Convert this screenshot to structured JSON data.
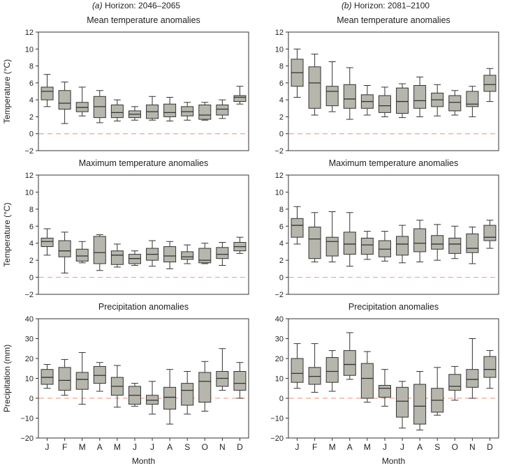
{
  "column_headers": [
    {
      "letter": "(a)",
      "text": "Horizon: 2046–2065"
    },
    {
      "letter": "(b)",
      "text": "Horizon: 2081–2100"
    }
  ],
  "x_axis_label": "Month",
  "colors": {
    "box_fill": "#b6b6ad",
    "box_stroke": "#333333",
    "zero_line": "#f4a38f",
    "frame": "#333333"
  },
  "chart_data": [
    {
      "type": "boxplot",
      "row": 0,
      "column": 0,
      "title": "Mean temperature anomalies",
      "ylabel": "Temperature (°C)",
      "ylim": [
        -2,
        12
      ],
      "yticks": [
        -2,
        0,
        2,
        4,
        6,
        8,
        10,
        12
      ],
      "reference_line": 0,
      "grid": false,
      "categories": [
        "J",
        "F",
        "M",
        "A",
        "M",
        "J",
        "J",
        "A",
        "S",
        "O",
        "N",
        "D"
      ],
      "boxes": [
        {
          "whislo": 3.2,
          "q1": 4.0,
          "med": 5.0,
          "q3": 5.5,
          "whishi": 7.0
        },
        {
          "whislo": 1.2,
          "q1": 2.9,
          "med": 3.6,
          "q3": 5.1,
          "whishi": 6.1
        },
        {
          "whislo": 2.1,
          "q1": 2.6,
          "med": 3.1,
          "q3": 3.7,
          "whishi": 5.5
        },
        {
          "whislo": 1.3,
          "q1": 1.9,
          "med": 3.2,
          "q3": 4.4,
          "whishi": 5.1
        },
        {
          "whislo": 1.5,
          "q1": 1.9,
          "med": 2.5,
          "q3": 3.4,
          "whishi": 4.0
        },
        {
          "whislo": 1.6,
          "q1": 1.9,
          "med": 2.3,
          "q3": 2.7,
          "whishi": 3.2
        },
        {
          "whislo": 1.6,
          "q1": 1.8,
          "med": 2.6,
          "q3": 3.4,
          "whishi": 4.4
        },
        {
          "whislo": 1.5,
          "q1": 2.0,
          "med": 2.5,
          "q3": 3.5,
          "whishi": 4.3
        },
        {
          "whislo": 1.6,
          "q1": 2.1,
          "med": 2.6,
          "q3": 3.2,
          "whishi": 3.7
        },
        {
          "whislo": 1.6,
          "q1": 1.7,
          "med": 2.2,
          "q3": 3.4,
          "whishi": 3.7
        },
        {
          "whislo": 1.8,
          "q1": 2.2,
          "med": 2.9,
          "q3": 3.4,
          "whishi": 4.0
        },
        {
          "whislo": 3.5,
          "q1": 3.8,
          "med": 4.3,
          "q3": 4.5,
          "whishi": 5.6
        }
      ]
    },
    {
      "type": "boxplot",
      "row": 0,
      "column": 1,
      "title": "Mean temperature anomalies",
      "ylabel": "",
      "ylim": [
        -2,
        12
      ],
      "yticks": [
        -2,
        0,
        2,
        4,
        6,
        8,
        10,
        12
      ],
      "reference_line": 0,
      "grid": false,
      "categories": [
        "J",
        "F",
        "M",
        "A",
        "M",
        "J",
        "J",
        "A",
        "S",
        "O",
        "N",
        "D"
      ],
      "boxes": [
        {
          "whislo": 4.3,
          "q1": 5.6,
          "med": 7.2,
          "q3": 8.8,
          "whishi": 10.0
        },
        {
          "whislo": 2.2,
          "q1": 3.0,
          "med": 6.0,
          "q3": 7.9,
          "whishi": 9.4
        },
        {
          "whislo": 2.6,
          "q1": 3.3,
          "med": 5.0,
          "q3": 5.6,
          "whishi": 8.5
        },
        {
          "whislo": 1.7,
          "q1": 3.0,
          "med": 4.1,
          "q3": 5.8,
          "whishi": 7.8
        },
        {
          "whislo": 2.2,
          "q1": 3.0,
          "med": 3.8,
          "q3": 4.6,
          "whishi": 5.7
        },
        {
          "whislo": 2.0,
          "q1": 2.5,
          "med": 3.3,
          "q3": 4.5,
          "whishi": 5.5
        },
        {
          "whislo": 1.9,
          "q1": 2.4,
          "med": 3.8,
          "q3": 5.4,
          "whishi": 5.9
        },
        {
          "whislo": 2.0,
          "q1": 3.0,
          "med": 3.9,
          "q3": 5.7,
          "whishi": 6.7
        },
        {
          "whislo": 2.1,
          "q1": 3.2,
          "med": 4.0,
          "q3": 4.8,
          "whishi": 5.8
        },
        {
          "whislo": 2.2,
          "q1": 2.7,
          "med": 3.7,
          "q3": 4.5,
          "whishi": 5.1
        },
        {
          "whislo": 2.0,
          "q1": 3.2,
          "med": 3.5,
          "q3": 5.0,
          "whishi": 5.6
        },
        {
          "whislo": 3.8,
          "q1": 5.0,
          "med": 5.8,
          "q3": 6.9,
          "whishi": 7.7
        }
      ]
    },
    {
      "type": "boxplot",
      "row": 1,
      "column": 0,
      "title": "Maximum temperature anomalies",
      "ylabel": "Temperature (°C)",
      "ylim": [
        -2,
        12
      ],
      "yticks": [
        -2,
        0,
        2,
        4,
        6,
        8,
        10,
        12
      ],
      "reference_line": 0,
      "grid": false,
      "categories": [
        "J",
        "F",
        "M",
        "A",
        "M",
        "J",
        "J",
        "A",
        "S",
        "O",
        "N",
        "D"
      ],
      "boxes": [
        {
          "whislo": 2.6,
          "q1": 3.6,
          "med": 4.2,
          "q3": 4.6,
          "whishi": 5.7
        },
        {
          "whislo": 0.5,
          "q1": 2.4,
          "med": 3.1,
          "q3": 4.3,
          "whishi": 5.3
        },
        {
          "whislo": 1.7,
          "q1": 1.9,
          "med": 2.5,
          "q3": 3.3,
          "whishi": 4.2
        },
        {
          "whislo": 0.8,
          "q1": 1.6,
          "med": 2.9,
          "q3": 4.8,
          "whishi": 5.0
        },
        {
          "whislo": 1.2,
          "q1": 1.5,
          "med": 2.6,
          "q3": 3.1,
          "whishi": 3.9
        },
        {
          "whislo": 1.4,
          "q1": 1.6,
          "med": 2.2,
          "q3": 2.7,
          "whishi": 3.1
        },
        {
          "whislo": 1.3,
          "q1": 2.0,
          "med": 2.7,
          "q3": 3.4,
          "whishi": 4.3
        },
        {
          "whislo": 1.0,
          "q1": 1.8,
          "med": 2.5,
          "q3": 3.6,
          "whishi": 4.2
        },
        {
          "whislo": 1.6,
          "q1": 2.1,
          "med": 2.4,
          "q3": 3.0,
          "whishi": 3.8
        },
        {
          "whislo": 1.6,
          "q1": 1.7,
          "med": 2.0,
          "q3": 3.4,
          "whishi": 4.0
        },
        {
          "whislo": 1.4,
          "q1": 2.2,
          "med": 2.7,
          "q3": 3.5,
          "whishi": 4.1
        },
        {
          "whislo": 2.8,
          "q1": 3.1,
          "med": 3.6,
          "q3": 4.1,
          "whishi": 4.7
        }
      ]
    },
    {
      "type": "boxplot",
      "row": 1,
      "column": 1,
      "title": "Maximum temperature anomalies",
      "ylabel": "",
      "ylim": [
        -2,
        12
      ],
      "yticks": [
        -2,
        0,
        2,
        4,
        6,
        8,
        10,
        12
      ],
      "reference_line": 0,
      "grid": false,
      "categories": [
        "J",
        "F",
        "M",
        "A",
        "M",
        "J",
        "J",
        "A",
        "S",
        "O",
        "N",
        "D"
      ],
      "boxes": [
        {
          "whislo": 3.9,
          "q1": 4.7,
          "med": 6.1,
          "q3": 6.9,
          "whishi": 8.3
        },
        {
          "whislo": 1.8,
          "q1": 2.2,
          "med": 4.5,
          "q3": 5.9,
          "whishi": 7.6
        },
        {
          "whislo": 1.8,
          "q1": 2.5,
          "med": 4.2,
          "q3": 4.7,
          "whishi": 7.7
        },
        {
          "whislo": 1.3,
          "q1": 2.7,
          "med": 3.9,
          "q3": 5.3,
          "whishi": 7.6
        },
        {
          "whislo": 2.1,
          "q1": 2.7,
          "med": 3.8,
          "q3": 4.6,
          "whishi": 5.4
        },
        {
          "whislo": 1.9,
          "q1": 2.4,
          "med": 3.3,
          "q3": 4.3,
          "whishi": 5.4
        },
        {
          "whislo": 1.7,
          "q1": 2.6,
          "med": 3.9,
          "q3": 4.8,
          "whishi": 6.1
        },
        {
          "whislo": 1.8,
          "q1": 3.0,
          "med": 4.0,
          "q3": 5.7,
          "whishi": 6.7
        },
        {
          "whislo": 2.0,
          "q1": 3.3,
          "med": 3.9,
          "q3": 4.9,
          "whishi": 6.2
        },
        {
          "whislo": 2.2,
          "q1": 2.8,
          "med": 3.9,
          "q3": 4.6,
          "whishi": 6.0
        },
        {
          "whislo": 1.6,
          "q1": 2.9,
          "med": 3.4,
          "q3": 5.1,
          "whishi": 5.9
        },
        {
          "whislo": 3.4,
          "q1": 4.3,
          "med": 4.7,
          "q3": 6.1,
          "whishi": 6.7
        }
      ]
    },
    {
      "type": "boxplot",
      "row": 2,
      "column": 0,
      "title": "Precipitation anomalies",
      "ylabel": "Precipitation (mm)",
      "ylim": [
        -20,
        40
      ],
      "yticks": [
        -20,
        -10,
        0,
        10,
        20,
        30,
        40
      ],
      "reference_line": 0,
      "grid": false,
      "categories": [
        "J",
        "F",
        "M",
        "A",
        "M",
        "J",
        "J",
        "A",
        "S",
        "O",
        "N",
        "D"
      ],
      "boxes": [
        {
          "whislo": 5.0,
          "q1": 7.0,
          "med": 10.5,
          "q3": 14.5,
          "whishi": 17.0
        },
        {
          "whislo": 1.5,
          "q1": 4.0,
          "med": 9.0,
          "q3": 15.5,
          "whishi": 19.5
        },
        {
          "whislo": -3.0,
          "q1": 4.5,
          "med": 9.5,
          "q3": 13.0,
          "whishi": 23.0
        },
        {
          "whislo": 3.5,
          "q1": 7.5,
          "med": 11.5,
          "q3": 16.0,
          "whishi": 18.0
        },
        {
          "whislo": -4.5,
          "q1": 1.5,
          "med": 6.0,
          "q3": 10.5,
          "whishi": 16.5
        },
        {
          "whislo": -4.0,
          "q1": -3.0,
          "med": 1.5,
          "q3": 6.0,
          "whishi": 7.5
        },
        {
          "whislo": -8.0,
          "q1": -3.0,
          "med": -1.0,
          "q3": 1.5,
          "whishi": 8.5
        },
        {
          "whislo": -13.0,
          "q1": -5.5,
          "med": 0.5,
          "q3": 5.5,
          "whishi": 14.5
        },
        {
          "whislo": -8.0,
          "q1": -3.5,
          "med": 4.0,
          "q3": 7.5,
          "whishi": 13.5
        },
        {
          "whislo": -6.5,
          "q1": -2.0,
          "med": 8.5,
          "q3": 13.0,
          "whishi": 18.5
        },
        {
          "whislo": 4.0,
          "q1": 6.0,
          "med": 10.0,
          "q3": 13.5,
          "whishi": 25.0
        },
        {
          "whislo": 0.0,
          "q1": 4.0,
          "med": 7.5,
          "q3": 13.5,
          "whishi": 18.0
        }
      ]
    },
    {
      "type": "boxplot",
      "row": 2,
      "column": 1,
      "title": "Precipitation anomalies",
      "ylabel": "",
      "ylim": [
        -20,
        40
      ],
      "yticks": [
        -20,
        -10,
        0,
        10,
        20,
        30,
        40
      ],
      "reference_line": 0,
      "grid": false,
      "categories": [
        "J",
        "F",
        "M",
        "A",
        "M",
        "J",
        "J",
        "A",
        "S",
        "O",
        "N",
        "D"
      ],
      "boxes": [
        {
          "whislo": 5.0,
          "q1": 8.0,
          "med": 12.5,
          "q3": 20.0,
          "whishi": 27.5
        },
        {
          "whislo": 3.0,
          "q1": 7.0,
          "med": 11.0,
          "q3": 15.5,
          "whishi": 27.5
        },
        {
          "whislo": 3.5,
          "q1": 8.0,
          "med": 13.5,
          "q3": 20.5,
          "whishi": 24.0
        },
        {
          "whislo": 9.5,
          "q1": 11.5,
          "med": 17.0,
          "q3": 24.0,
          "whishi": 33.0
        },
        {
          "whislo": -2.0,
          "q1": 0.0,
          "med": 10.0,
          "q3": 17.5,
          "whishi": 23.5
        },
        {
          "whislo": -4.0,
          "q1": 0.5,
          "med": 5.0,
          "q3": 6.5,
          "whishi": 14.5
        },
        {
          "whislo": -15.0,
          "q1": -9.5,
          "med": -1.5,
          "q3": 5.5,
          "whishi": 8.5
        },
        {
          "whislo": -16.0,
          "q1": -13.0,
          "med": -4.0,
          "q3": 7.0,
          "whishi": 13.5
        },
        {
          "whislo": -8.5,
          "q1": -7.0,
          "med": -1.0,
          "q3": 5.0,
          "whishi": 15.5
        },
        {
          "whislo": -1.0,
          "q1": 4.0,
          "med": 6.0,
          "q3": 12.0,
          "whishi": 16.0
        },
        {
          "whislo": 0.0,
          "q1": 5.5,
          "med": 9.5,
          "q3": 14.5,
          "whishi": 30.0
        },
        {
          "whislo": 5.0,
          "q1": 10.5,
          "med": 14.5,
          "q3": 21.0,
          "whishi": 24.0
        }
      ]
    }
  ]
}
